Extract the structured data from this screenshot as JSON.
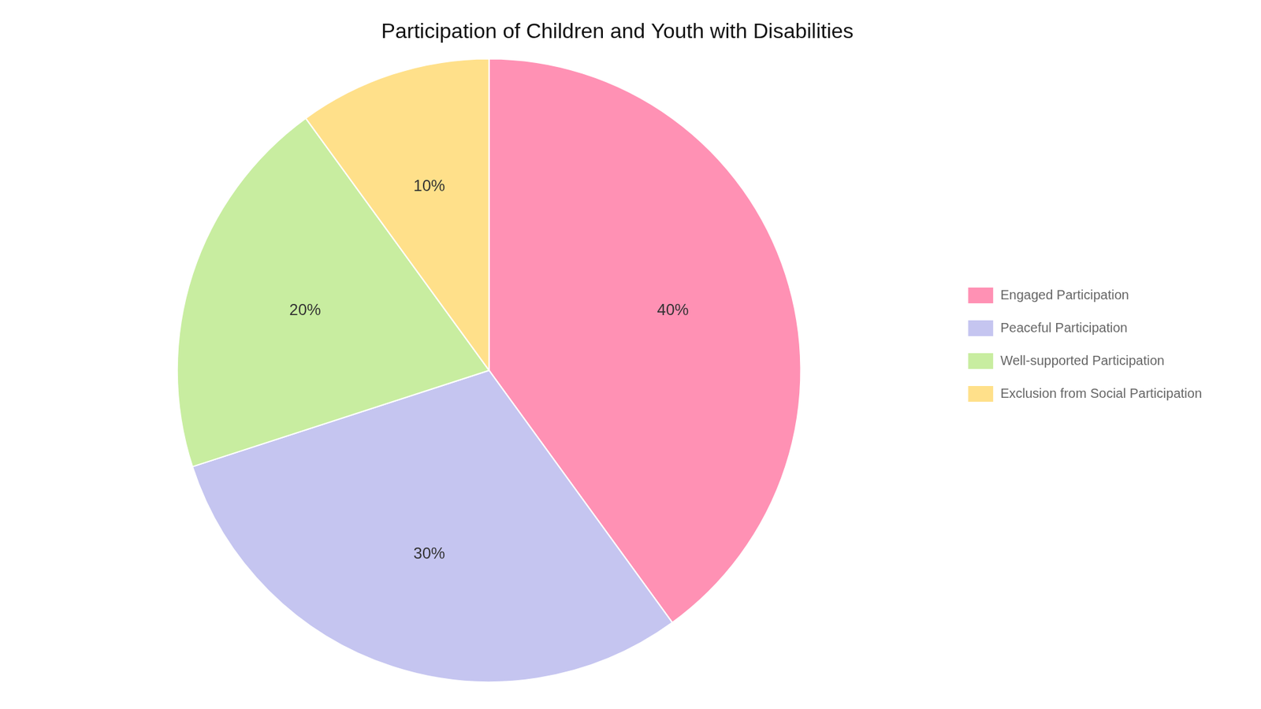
{
  "chart_data": {
    "type": "pie",
    "title": "Participation of Children and Youth with Disabilities",
    "categories": [
      "Engaged Participation",
      "Peaceful Participation",
      "Well-supported Participation",
      "Exclusion from Social Participation"
    ],
    "values": [
      40,
      30,
      20,
      10
    ],
    "value_labels": [
      "40%",
      "30%",
      "20%",
      "10%"
    ],
    "colors": [
      "#FF91B4",
      "#C5C5F0",
      "#C8EDA0",
      "#FFE08A"
    ],
    "data_labels": true,
    "legend": "right"
  }
}
